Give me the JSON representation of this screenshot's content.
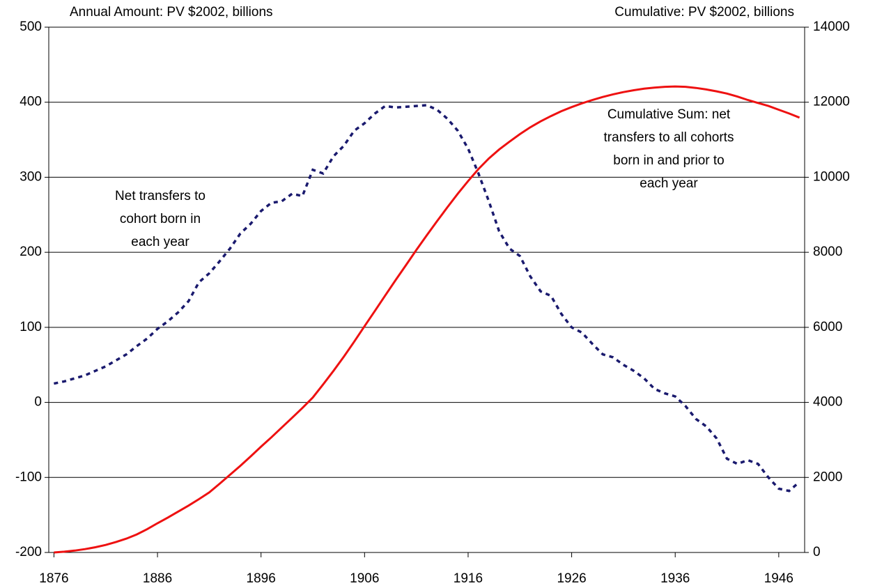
{
  "chart_data": {
    "type": "line",
    "ylabel": "Annual Amount: PV $2002, billions",
    "y2label": "Cumulative: PV $2002, billions",
    "annotations": [
      {
        "lines": [
          "Net transfers to",
          "cohort born in",
          "each year"
        ]
      },
      {
        "lines": [
          "Cumulative Sum: net",
          "transfers to all cohorts",
          "born in and prior to",
          "each year"
        ]
      }
    ],
    "x": [
      1876,
      1877,
      1878,
      1879,
      1880,
      1881,
      1882,
      1883,
      1884,
      1885,
      1886,
      1887,
      1888,
      1889,
      1890,
      1891,
      1892,
      1893,
      1894,
      1895,
      1896,
      1897,
      1898,
      1899,
      1900,
      1901,
      1902,
      1903,
      1904,
      1905,
      1906,
      1907,
      1908,
      1909,
      1910,
      1911,
      1912,
      1913,
      1914,
      1915,
      1916,
      1917,
      1918,
      1919,
      1920,
      1921,
      1922,
      1923,
      1924,
      1925,
      1926,
      1927,
      1928,
      1929,
      1930,
      1931,
      1932,
      1933,
      1934,
      1935,
      1936,
      1937,
      1938,
      1939,
      1940,
      1941,
      1942,
      1943,
      1944,
      1945,
      1946,
      1947,
      1948
    ],
    "xlim": [
      1875.5,
      1948.5
    ],
    "xticks": [
      1876,
      1886,
      1896,
      1906,
      1916,
      1926,
      1936,
      1946
    ],
    "ylim": [
      -200,
      500
    ],
    "yticks": [
      -200,
      -100,
      0,
      100,
      200,
      300,
      400,
      500
    ],
    "y2lim": [
      0,
      14000
    ],
    "y2ticks": [
      0,
      2000,
      4000,
      6000,
      8000,
      10000,
      12000,
      14000
    ],
    "grid": true,
    "series": [
      {
        "name": "Net transfers to cohort born in each year",
        "color": "#1a1a6e",
        "dash": true,
        "values": [
          25,
          28,
          32,
          36,
          42,
          48,
          56,
          64,
          75,
          85,
          98,
          108,
          120,
          135,
          160,
          172,
          188,
          205,
          225,
          238,
          255,
          266,
          268,
          278,
          275,
          310,
          305,
          328,
          342,
          362,
          372,
          385,
          395,
          393,
          394,
          395,
          396,
          390,
          378,
          362,
          338,
          305,
          268,
          228,
          205,
          195,
          168,
          148,
          142,
          118,
          100,
          93,
          78,
          64,
          60,
          50,
          42,
          32,
          18,
          12,
          8,
          -5,
          -22,
          -32,
          -48,
          -75,
          -82,
          -77,
          -82,
          -100,
          -115,
          -118,
          -106
        ]
      },
      {
        "name": "Cumulative Sum",
        "color": "#ee1111",
        "axis": "y2",
        "values": [
          0,
          20,
          50,
          90,
          140,
          200,
          280,
          370,
          480,
          620,
          780,
          930,
          1090,
          1250,
          1420,
          1600,
          1830,
          2070,
          2310,
          2560,
          2820,
          3070,
          3330,
          3590,
          3850,
          4130,
          4480,
          4840,
          5220,
          5620,
          6030,
          6440,
          6850,
          7260,
          7660,
          8060,
          8450,
          8830,
          9200,
          9560,
          9900,
          10220,
          10500,
          10740,
          10950,
          11150,
          11330,
          11490,
          11630,
          11760,
          11870,
          11970,
          12060,
          12140,
          12210,
          12270,
          12320,
          12360,
          12390,
          12410,
          12420,
          12410,
          12380,
          12340,
          12290,
          12230,
          12150,
          12060,
          11980,
          11900,
          11800,
          11700,
          11590
        ]
      }
    ]
  }
}
